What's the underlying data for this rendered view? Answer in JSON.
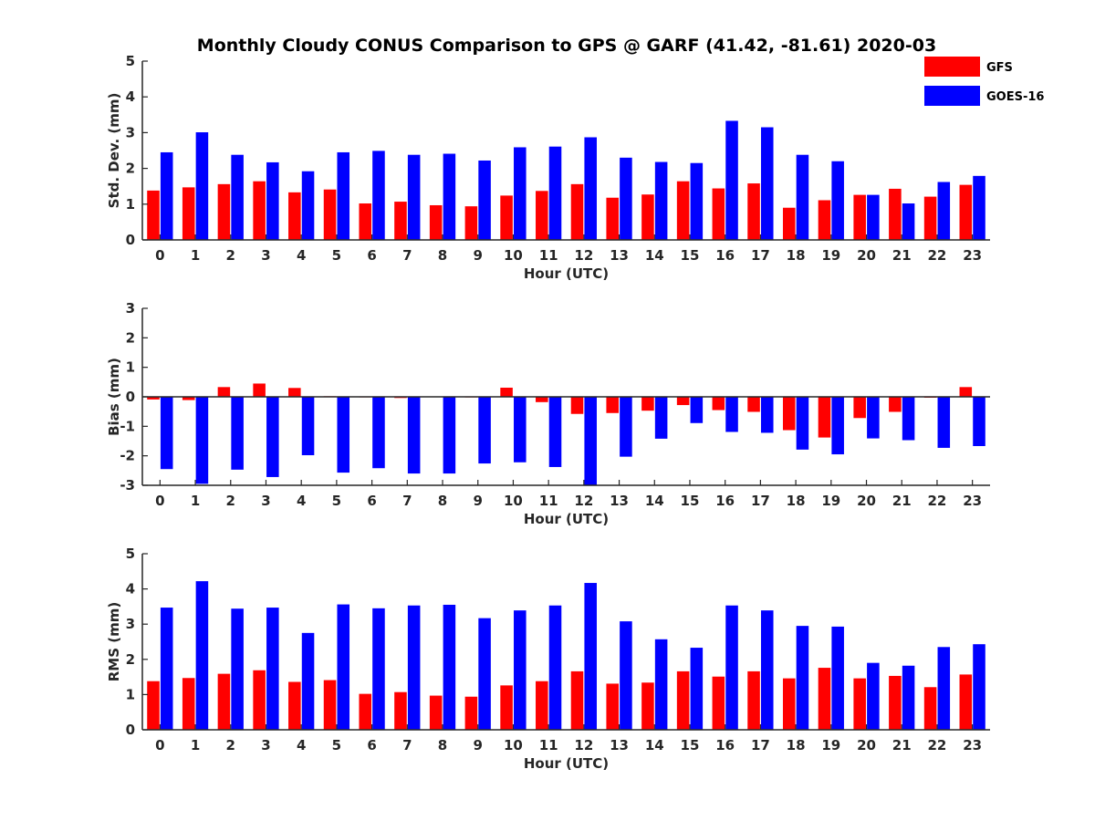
{
  "title": "Monthly Cloudy CONUS Comparison to GPS @ GARF (41.42, -81.61) 2020-03",
  "colors": {
    "GFS": "#ff0000",
    "GOES-16": "#0000ff"
  },
  "chart_data": [
    {
      "type": "bar",
      "xlabel": "Hour (UTC)",
      "ylabel": "Std. Dev. (mm)",
      "ylim": [
        0,
        5
      ],
      "yticks": [
        "0",
        "1",
        "2",
        "3",
        "4",
        "5"
      ],
      "categories": [
        "0",
        "1",
        "2",
        "3",
        "4",
        "5",
        "6",
        "7",
        "8",
        "9",
        "10",
        "11",
        "12",
        "13",
        "14",
        "15",
        "16",
        "17",
        "18",
        "19",
        "20",
        "21",
        "22",
        "23"
      ],
      "legend": {
        "placement": "top-right",
        "entries": [
          "GFS",
          "GOES-16"
        ]
      },
      "series": [
        {
          "name": "GFS",
          "values": [
            1.38,
            1.47,
            1.56,
            1.64,
            1.33,
            1.41,
            1.02,
            1.07,
            0.97,
            0.94,
            1.24,
            1.37,
            1.56,
            1.18,
            1.27,
            1.64,
            1.44,
            1.58,
            0.9,
            1.11,
            1.26,
            1.43,
            1.21,
            1.54
          ]
        },
        {
          "name": "GOES-16",
          "values": [
            2.45,
            3.01,
            2.38,
            2.17,
            1.92,
            2.45,
            2.49,
            2.38,
            2.41,
            2.22,
            2.59,
            2.61,
            2.87,
            2.3,
            2.18,
            2.15,
            3.33,
            3.15,
            2.38,
            2.2,
            1.26,
            1.02,
            1.62,
            1.79
          ]
        }
      ]
    },
    {
      "type": "bar",
      "xlabel": "Hour (UTC)",
      "ylabel": "Bias (mm)",
      "ylim": [
        -3,
        3
      ],
      "yticks": [
        "-3",
        "-2",
        "-1",
        "0",
        "1",
        "2",
        "3"
      ],
      "categories": [
        "0",
        "1",
        "2",
        "3",
        "4",
        "5",
        "6",
        "7",
        "8",
        "9",
        "10",
        "11",
        "12",
        "13",
        "14",
        "15",
        "16",
        "17",
        "18",
        "19",
        "20",
        "21",
        "22",
        "23"
      ],
      "series": [
        {
          "name": "GFS",
          "values": [
            -0.09,
            -0.11,
            0.33,
            0.45,
            0.3,
            0.02,
            -0.01,
            -0.04,
            0.01,
            -0.02,
            0.31,
            -0.18,
            -0.58,
            -0.55,
            -0.47,
            -0.28,
            -0.45,
            -0.51,
            -1.13,
            -1.38,
            -0.72,
            -0.51,
            -0.03,
            0.33
          ]
        },
        {
          "name": "GOES-16",
          "values": [
            -2.45,
            -2.95,
            -2.47,
            -2.72,
            -1.98,
            -2.57,
            -2.42,
            -2.6,
            -2.6,
            -2.26,
            -2.22,
            -2.38,
            -3.0,
            -2.03,
            -1.42,
            -0.89,
            -1.19,
            -1.22,
            -1.79,
            -1.95,
            -1.41,
            -1.47,
            -1.73,
            -1.67
          ]
        }
      ]
    },
    {
      "type": "bar",
      "xlabel": "Hour (UTC)",
      "ylabel": "RMS (mm)",
      "ylim": [
        0,
        5
      ],
      "yticks": [
        "0",
        "1",
        "2",
        "3",
        "4",
        "5"
      ],
      "categories": [
        "0",
        "1",
        "2",
        "3",
        "4",
        "5",
        "6",
        "7",
        "8",
        "9",
        "10",
        "11",
        "12",
        "13",
        "14",
        "15",
        "16",
        "17",
        "18",
        "19",
        "20",
        "21",
        "22",
        "23"
      ],
      "series": [
        {
          "name": "GFS",
          "values": [
            1.38,
            1.47,
            1.59,
            1.69,
            1.36,
            1.41,
            1.02,
            1.07,
            0.97,
            0.94,
            1.26,
            1.38,
            1.66,
            1.31,
            1.34,
            1.66,
            1.51,
            1.66,
            1.46,
            1.76,
            1.46,
            1.53,
            1.21,
            1.57
          ]
        },
        {
          "name": "GOES-16",
          "values": [
            3.47,
            4.22,
            3.44,
            3.47,
            2.75,
            3.56,
            3.45,
            3.53,
            3.55,
            3.17,
            3.39,
            3.53,
            4.17,
            3.08,
            2.57,
            2.33,
            3.53,
            3.39,
            2.95,
            2.93,
            1.9,
            1.82,
            2.35,
            2.43
          ]
        }
      ]
    }
  ]
}
